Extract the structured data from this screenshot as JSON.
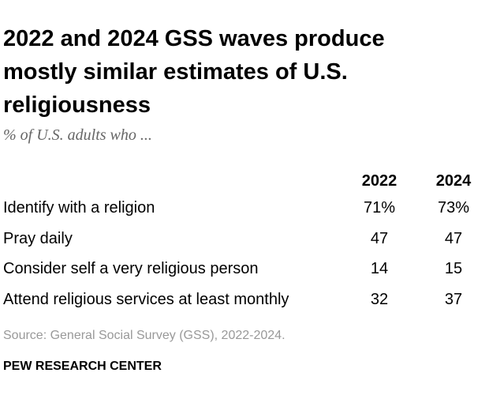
{
  "header": {
    "title": "2022 and 2024 GSS waves produce mostly similar estimates of U.S. religiousness",
    "subtitle": "% of U.S. adults who ..."
  },
  "table": {
    "columns": [
      "2022",
      "2024"
    ],
    "rows": [
      [
        "Identify with a religion",
        "71%",
        "73%"
      ],
      [
        "Pray daily",
        "47",
        "47"
      ],
      [
        "Consider self a very religious person",
        "14",
        "15"
      ],
      [
        "Attend religious services at least monthly",
        "32",
        "37"
      ]
    ]
  },
  "footer": {
    "source": "Source: General Social Survey (GSS), 2022-2024.",
    "credit": "PEW RESEARCH CENTER"
  }
}
